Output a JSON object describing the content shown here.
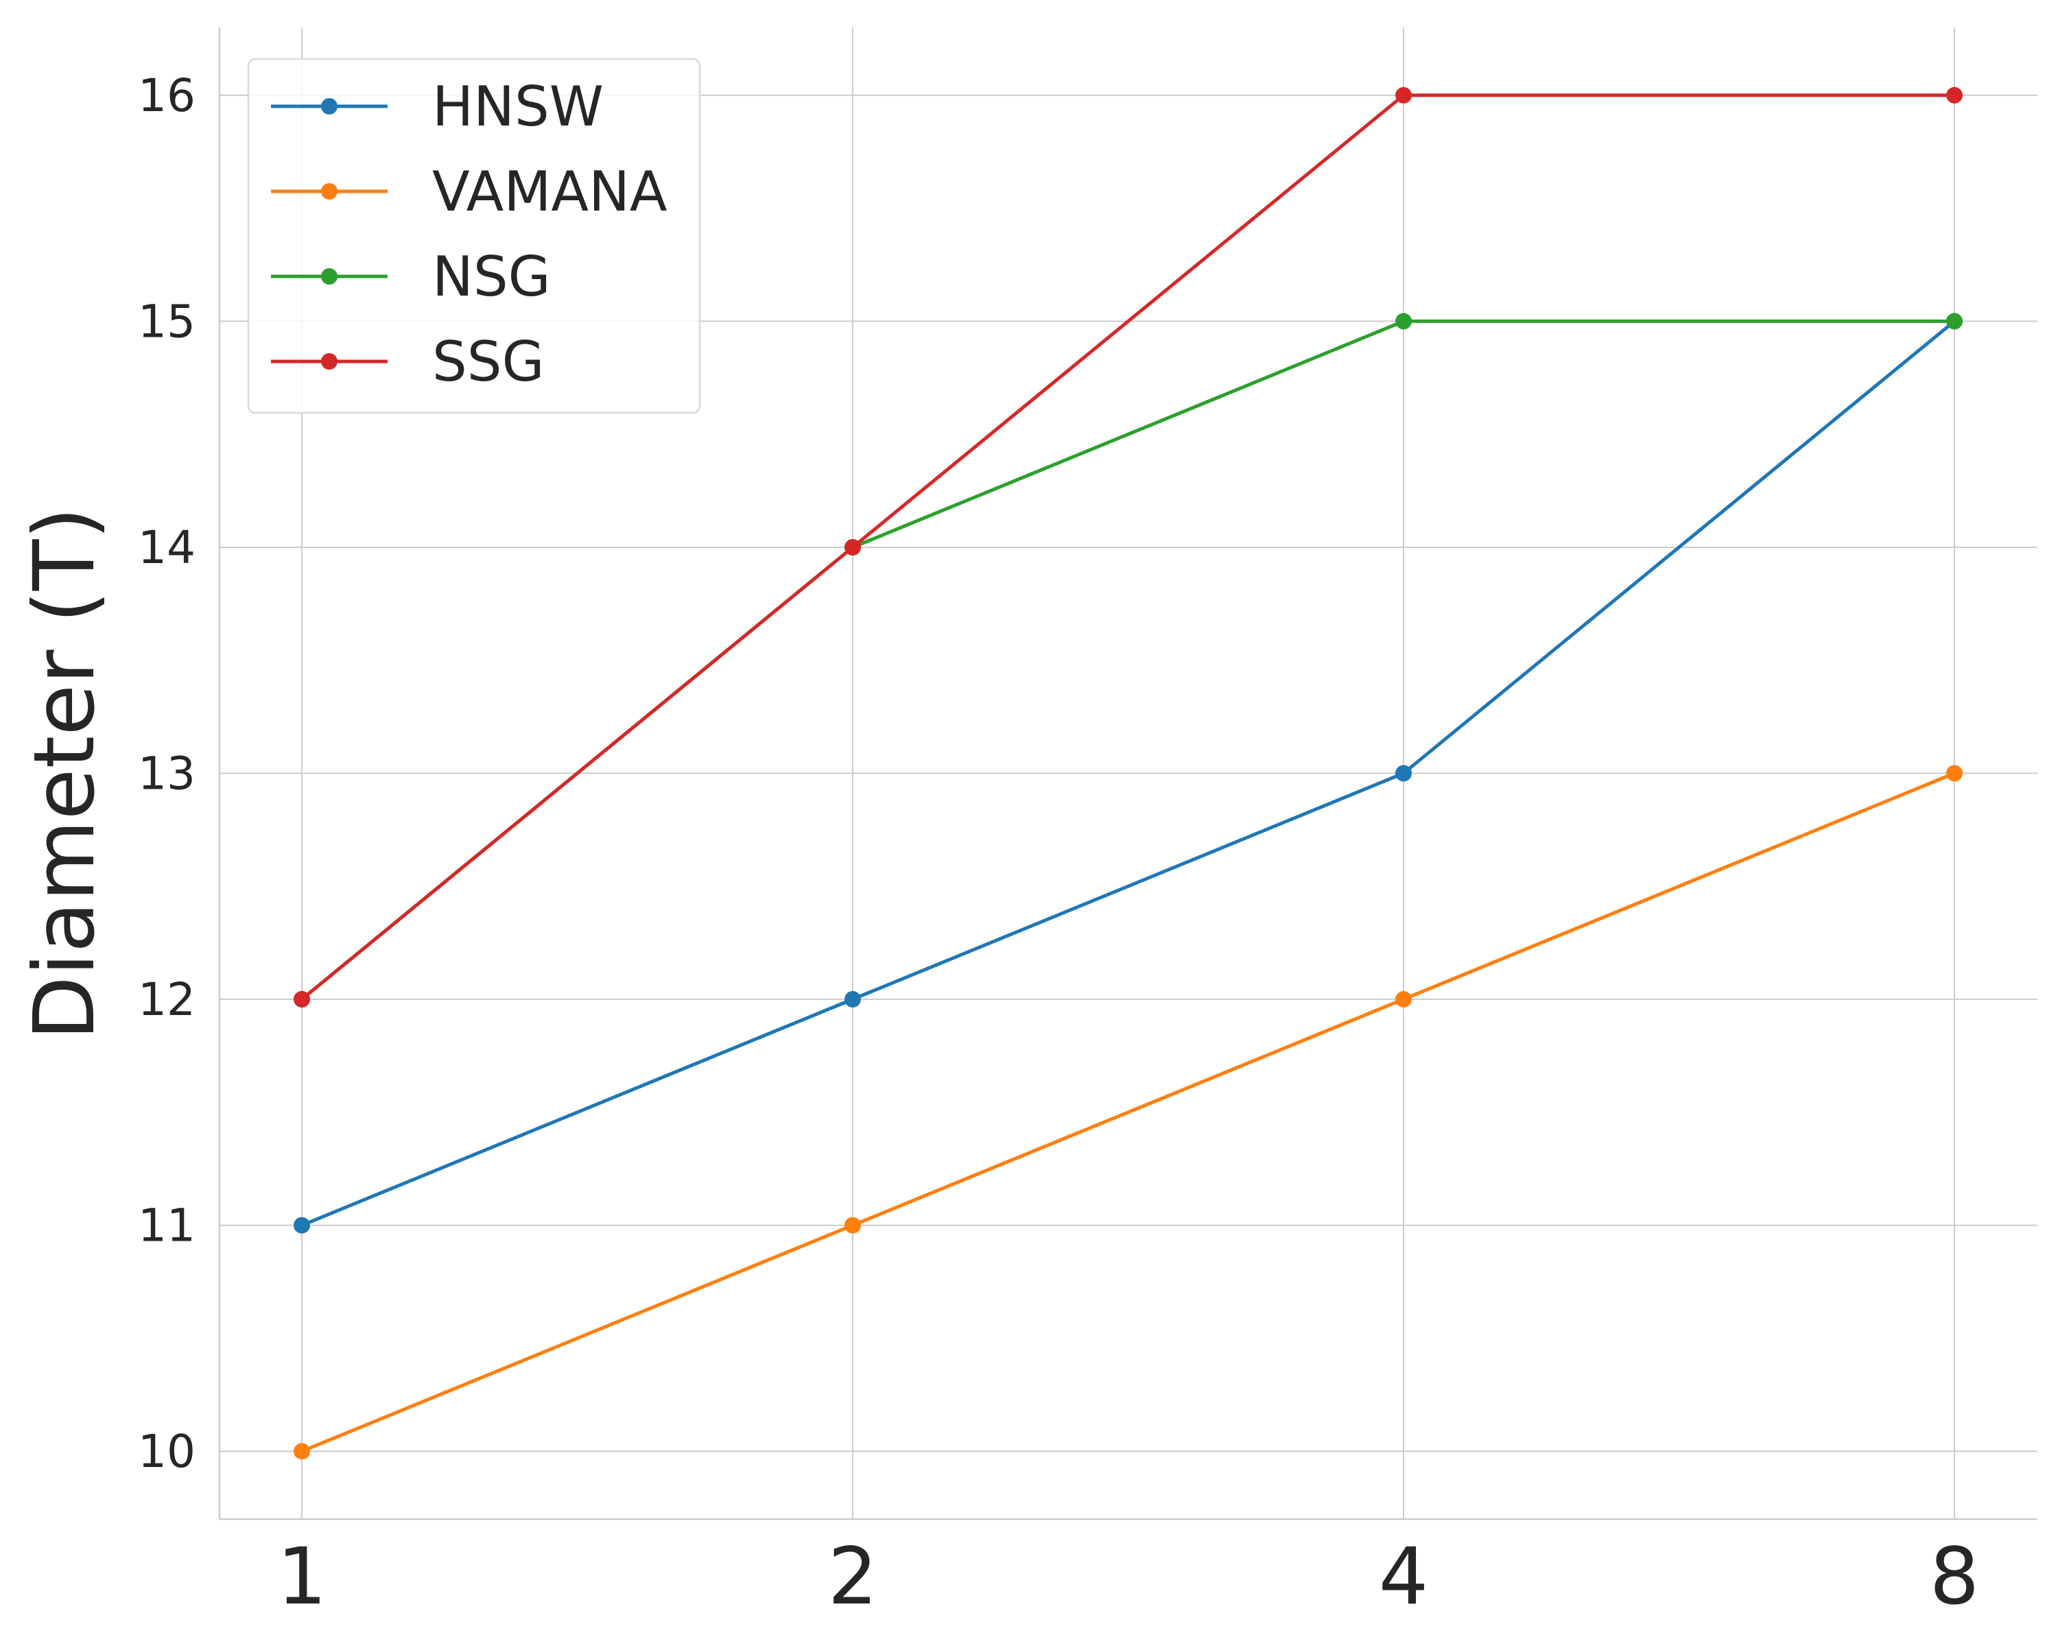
{
  "chart_data": {
    "type": "line",
    "x": [
      1,
      2,
      4,
      8
    ],
    "x_tick_labels": [
      "1",
      "2",
      "4",
      "8"
    ],
    "x_scale": "log2",
    "xlabel": "",
    "ylabel": "Diameter (T)",
    "ylim": [
      9.7,
      16.3
    ],
    "y_ticks": [
      10,
      11,
      12,
      13,
      14,
      15,
      16
    ],
    "y_tick_labels": [
      "10",
      "11",
      "12",
      "13",
      "14",
      "15",
      "16"
    ],
    "grid": true,
    "legend_position": "top-left",
    "series": [
      {
        "name": "HNSW",
        "color": "#1f77b4",
        "values": [
          11,
          12,
          13,
          15
        ]
      },
      {
        "name": "VAMANA",
        "color": "#ff7f0e",
        "values": [
          10,
          11,
          12,
          13
        ]
      },
      {
        "name": "NSG",
        "color": "#2ca02c",
        "values": [
          12,
          14,
          15,
          15
        ]
      },
      {
        "name": "SSG",
        "color": "#d62728",
        "values": [
          12,
          14,
          16,
          16
        ]
      }
    ]
  }
}
